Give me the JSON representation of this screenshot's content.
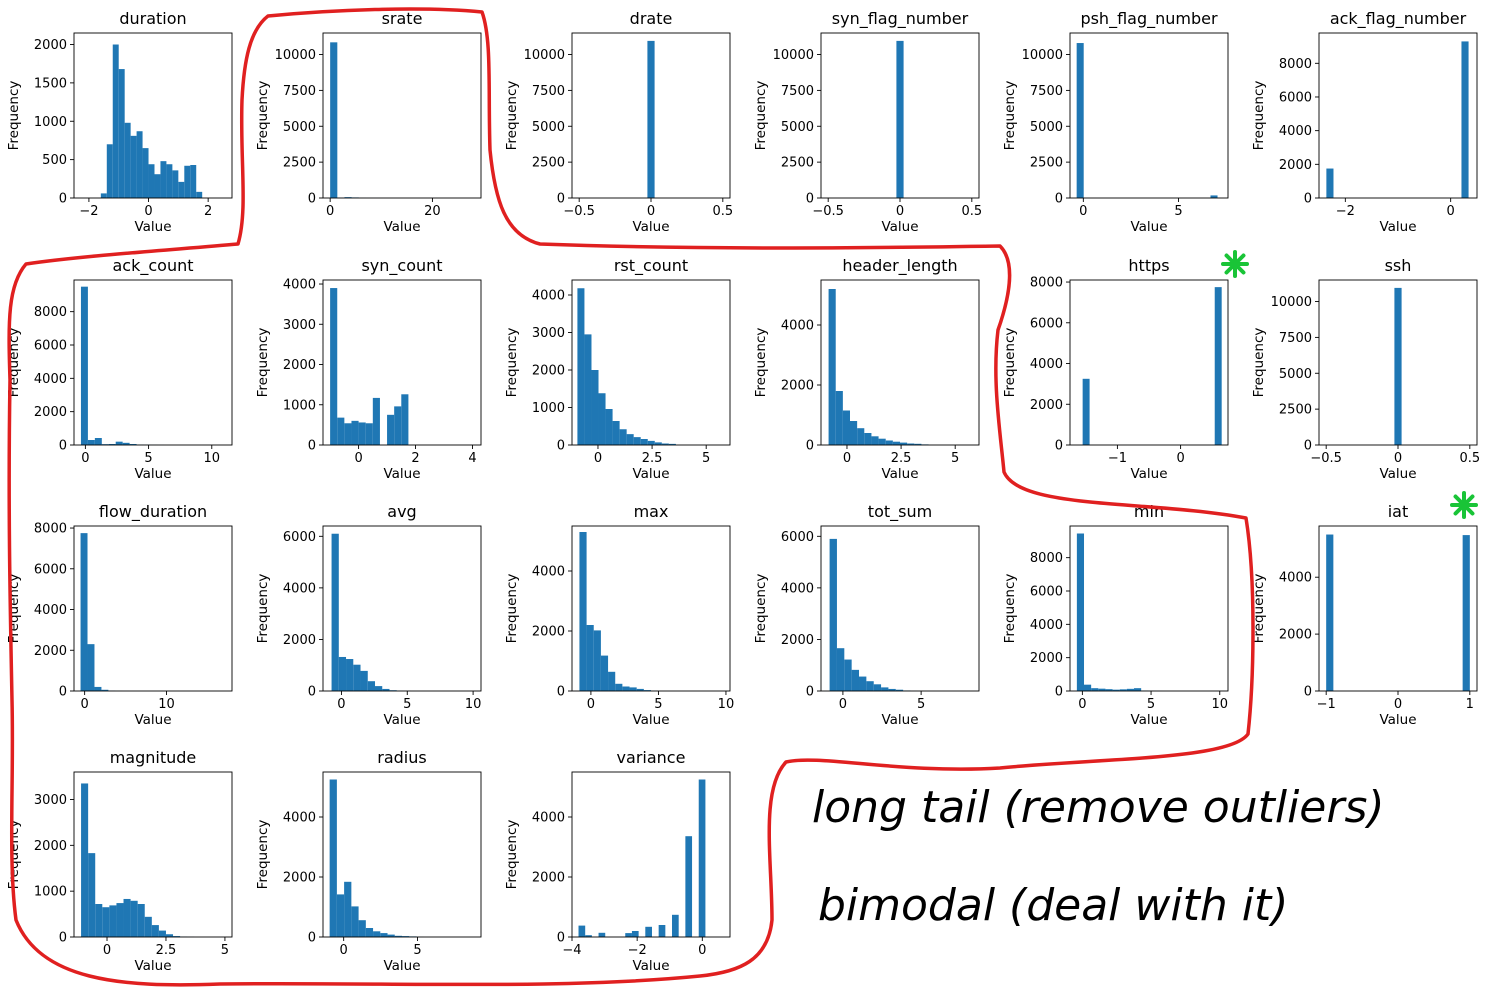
{
  "figure": {
    "bar_color": "#1f77b4",
    "ylabel": "Frequency",
    "xlabel": "Value",
    "annotations": [
      {
        "text": "long tail (remove outliers)",
        "color": "#e02020"
      },
      {
        "text": "bimodal (deal with it)",
        "color": "#19c437"
      }
    ]
  },
  "chart_data": [
    {
      "type": "bar",
      "title": "duration",
      "xlabel": "Value",
      "ylabel": "Frequency",
      "xlim": [
        -2.5,
        2.8
      ],
      "ylim": [
        0,
        2150
      ],
      "xticks": [
        -2,
        0,
        2
      ],
      "yticks": [
        0,
        500,
        1000,
        1500,
        2000
      ],
      "bins": {
        "start": -1.6,
        "width": 0.2,
        "values": [
          60,
          700,
          2000,
          1680,
          980,
          810,
          870,
          650,
          440,
          310,
          480,
          440,
          360,
          210,
          420,
          430,
          80
        ]
      }
    },
    {
      "type": "bar",
      "title": "srate",
      "xlabel": "Value",
      "ylabel": "Frequency",
      "xlim": [
        -1.4,
        29.5
      ],
      "ylim": [
        0,
        11500
      ],
      "xticks": [
        0,
        20
      ],
      "yticks": [
        0,
        2500,
        5000,
        7500,
        10000
      ],
      "bins": {
        "start": 0,
        "width": 1.4,
        "values": [
          10850,
          20,
          60,
          40,
          10,
          5,
          5,
          0,
          0,
          0,
          0,
          0,
          0,
          0,
          0,
          0,
          0,
          0,
          0,
          0
        ]
      }
    },
    {
      "type": "bar",
      "title": "drate",
      "xlabel": "Value",
      "ylabel": "Frequency",
      "xlim": [
        -0.55,
        0.55
      ],
      "ylim": [
        0,
        11500
      ],
      "xticks": [
        -0.5,
        0,
        0.5
      ],
      "yticks": [
        0,
        2500,
        5000,
        7500,
        10000
      ],
      "bins": {
        "start": -0.025,
        "width": 0.05,
        "values": [
          10950
        ]
      }
    },
    {
      "type": "bar",
      "title": "syn_flag_number",
      "xlabel": "Value",
      "ylabel": "Frequency",
      "xlim": [
        -0.55,
        0.55
      ],
      "ylim": [
        0,
        11500
      ],
      "xticks": [
        -0.5,
        0,
        0.5
      ],
      "yticks": [
        0,
        2500,
        5000,
        7500,
        10000
      ],
      "bins": {
        "start": -0.025,
        "width": 0.05,
        "values": [
          10950
        ]
      }
    },
    {
      "type": "bar",
      "title": "psh_flag_number",
      "xlabel": "Value",
      "ylabel": "Frequency",
      "xlim": [
        -0.7,
        7.6
      ],
      "ylim": [
        0,
        11500
      ],
      "xticks": [
        0,
        5
      ],
      "yticks": [
        0,
        2500,
        5000,
        7500,
        10000
      ],
      "bins": {
        "start": -0.35,
        "width": 0.37,
        "values": [
          10800,
          0,
          0,
          0,
          0,
          0,
          0,
          0,
          0,
          0,
          0,
          0,
          0,
          0,
          0,
          0,
          0,
          0,
          0,
          180
        ]
      }
    },
    {
      "type": "bar",
      "title": "ack_flag_number",
      "xlabel": "Value",
      "ylabel": "Frequency",
      "xlim": [
        -2.5,
        0.5
      ],
      "ylim": [
        0,
        9800
      ],
      "xticks": [
        -2,
        0
      ],
      "yticks": [
        0,
        2000,
        4000,
        6000,
        8000
      ],
      "bins": {
        "start": -2.36,
        "width": 0.135,
        "values": [
          1750,
          0,
          0,
          0,
          0,
          0,
          0,
          0,
          0,
          0,
          0,
          0,
          0,
          0,
          0,
          0,
          0,
          0,
          0,
          9300
        ]
      }
    },
    {
      "type": "bar",
      "title": "ack_count",
      "xlabel": "Value",
      "ylabel": "Frequency",
      "xlim": [
        -0.9,
        11.6
      ],
      "ylim": [
        0,
        9900
      ],
      "xticks": [
        0,
        5,
        10
      ],
      "yticks": [
        0,
        2000,
        4000,
        6000,
        8000
      ],
      "bins": {
        "start": -0.35,
        "width": 0.55,
        "values": [
          9500,
          300,
          420,
          50,
          60,
          200,
          130,
          60,
          30,
          20,
          10,
          5,
          0,
          0,
          0,
          0,
          0,
          0,
          0,
          0
        ]
      }
    },
    {
      "type": "bar",
      "title": "syn_count",
      "xlabel": "Value",
      "ylabel": "Frequency",
      "xlim": [
        -1.25,
        4.3
      ],
      "ylim": [
        0,
        4100
      ],
      "xticks": [
        0,
        2,
        4
      ],
      "yticks": [
        0,
        1000,
        2000,
        3000,
        4000
      ],
      "bins": {
        "start": -1.0,
        "width": 0.25,
        "values": [
          3900,
          680,
          540,
          600,
          560,
          540,
          1170,
          0,
          750,
          960,
          1260,
          0,
          0,
          0,
          0,
          0,
          0,
          0,
          0,
          0
        ]
      }
    },
    {
      "type": "bar",
      "title": "rst_count",
      "xlabel": "Value",
      "ylabel": "Frequency",
      "xlim": [
        -1.2,
        6.1
      ],
      "ylim": [
        0,
        4400
      ],
      "xticks": [
        0,
        2.5,
        5
      ],
      "yticks": [
        0,
        1000,
        2000,
        3000,
        4000
      ],
      "bins": {
        "start": -0.95,
        "width": 0.325,
        "values": [
          4180,
          2950,
          2000,
          1380,
          960,
          640,
          420,
          290,
          210,
          160,
          110,
          70,
          40,
          30,
          0,
          0,
          0,
          0,
          0,
          0
        ]
      }
    },
    {
      "type": "bar",
      "title": "header_length",
      "xlabel": "Value",
      "ylabel": "Frequency",
      "xlim": [
        -1.2,
        6.1
      ],
      "ylim": [
        0,
        5500
      ],
      "xticks": [
        0,
        2.5,
        5
      ],
      "yticks": [
        0,
        2000,
        4000
      ],
      "bins": {
        "start": -0.85,
        "width": 0.33,
        "values": [
          5200,
          1800,
          1150,
          800,
          560,
          400,
          290,
          210,
          150,
          110,
          80,
          50,
          40,
          20,
          0,
          0,
          0,
          0,
          0,
          0
        ]
      }
    },
    {
      "type": "bar",
      "title": "https",
      "xlabel": "Value",
      "ylabel": "Frequency",
      "xlim": [
        -1.75,
        0.75
      ],
      "ylim": [
        0,
        8100
      ],
      "xticks": [
        -1,
        0
      ],
      "yticks": [
        0,
        2000,
        4000,
        6000,
        8000
      ],
      "bins": {
        "start": -1.55,
        "width": 0.11,
        "values": [
          3250,
          0,
          0,
          0,
          0,
          0,
          0,
          0,
          0,
          0,
          0,
          0,
          0,
          0,
          0,
          0,
          0,
          0,
          0,
          7750
        ]
      }
    },
    {
      "type": "bar",
      "title": "ssh",
      "xlabel": "Value",
      "ylabel": "Frequency",
      "xlim": [
        -0.55,
        0.55
      ],
      "ylim": [
        0,
        11500
      ],
      "xticks": [
        -0.5,
        0,
        0.5
      ],
      "yticks": [
        0,
        2500,
        5000,
        7500,
        10000
      ],
      "bins": {
        "start": -0.025,
        "width": 0.05,
        "values": [
          10950
        ]
      }
    },
    {
      "type": "bar",
      "title": "flow_duration",
      "xlabel": "Value",
      "ylabel": "Frequency",
      "xlim": [
        -1.3,
        18
      ],
      "ylim": [
        0,
        8100
      ],
      "xticks": [
        0,
        10
      ],
      "yticks": [
        0,
        2000,
        4000,
        6000,
        8000
      ],
      "bins": {
        "start": -0.5,
        "width": 0.85,
        "values": [
          7750,
          2300,
          200,
          60,
          20,
          10,
          5,
          0,
          0,
          0,
          0,
          0,
          0,
          0,
          0,
          0,
          0,
          0,
          0,
          0
        ]
      }
    },
    {
      "type": "bar",
      "title": "avg",
      "xlabel": "Value",
      "ylabel": "Frequency",
      "xlim": [
        -1.4,
        10.6
      ],
      "ylim": [
        0,
        6400
      ],
      "xticks": [
        0,
        5,
        10
      ],
      "yticks": [
        0,
        2000,
        4000,
        6000
      ],
      "bins": {
        "start": -0.75,
        "width": 0.55,
        "values": [
          6100,
          1320,
          1240,
          1020,
          780,
          380,
          190,
          80,
          30,
          10,
          5,
          0,
          0,
          0,
          0,
          0,
          0,
          0,
          0,
          0
        ]
      }
    },
    {
      "type": "bar",
      "title": "max",
      "xlabel": "Value",
      "ylabel": "Frequency",
      "xlim": [
        -1.4,
        10.3
      ],
      "ylim": [
        0,
        5500
      ],
      "xticks": [
        0,
        5,
        10
      ],
      "yticks": [
        0,
        2000,
        4000
      ],
      "bins": {
        "start": -0.85,
        "width": 0.53,
        "values": [
          5300,
          2200,
          2020,
          1180,
          640,
          240,
          150,
          120,
          70,
          30,
          10,
          0,
          0,
          0,
          0,
          0,
          0,
          0,
          0,
          0
        ]
      }
    },
    {
      "type": "bar",
      "title": "tot_sum",
      "xlabel": "Value",
      "ylabel": "Frequency",
      "xlim": [
        -1.4,
        8.7
      ],
      "ylim": [
        0,
        6400
      ],
      "xticks": [
        0,
        5
      ],
      "yticks": [
        0,
        2000,
        4000,
        6000
      ],
      "bins": {
        "start": -0.85,
        "width": 0.47,
        "values": [
          5900,
          1660,
          1220,
          820,
          560,
          380,
          260,
          140,
          80,
          50,
          20,
          5,
          0,
          0,
          0,
          0,
          0,
          0,
          0,
          0
        ]
      }
    },
    {
      "type": "bar",
      "title": "min",
      "xlabel": "Value",
      "ylabel": "Frequency",
      "xlim": [
        -0.9,
        10.6
      ],
      "ylim": [
        0,
        9900
      ],
      "xticks": [
        0,
        5,
        10
      ],
      "yticks": [
        0,
        2000,
        4000,
        6000,
        8000
      ],
      "bins": {
        "start": -0.4,
        "width": 0.52,
        "values": [
          9450,
          380,
          170,
          140,
          110,
          80,
          100,
          130,
          170,
          30,
          10,
          5,
          0,
          0,
          0,
          0,
          0,
          0,
          0,
          0
        ]
      }
    },
    {
      "type": "bar",
      "title": "iat",
      "xlabel": "Value",
      "ylabel": "Frequency",
      "xlim": [
        -1.1,
        1.1
      ],
      "ylim": [
        0,
        5800
      ],
      "xticks": [
        -1,
        0,
        1
      ],
      "yticks": [
        0,
        2000,
        4000
      ],
      "bins": {
        "start": -1.0,
        "width": 0.1,
        "values": [
          5500,
          0,
          0,
          0,
          0,
          0,
          0,
          0,
          0,
          0,
          0,
          0,
          0,
          0,
          0,
          0,
          0,
          0,
          0,
          5480
        ]
      }
    },
    {
      "type": "bar",
      "title": "magnitude",
      "xlabel": "Value",
      "ylabel": "Frequency",
      "xlim": [
        -1.4,
        5.3
      ],
      "ylim": [
        0,
        3600
      ],
      "xticks": [
        0,
        2.5,
        5
      ],
      "yticks": [
        0,
        1000,
        2000,
        3000
      ],
      "bins": {
        "start": -1.1,
        "width": 0.3,
        "values": [
          3350,
          1830,
          720,
          650,
          690,
          740,
          830,
          790,
          720,
          440,
          260,
          140,
          60,
          20,
          10,
          5,
          0,
          0,
          0,
          0
        ]
      }
    },
    {
      "type": "bar",
      "title": "radius",
      "xlabel": "Value",
      "ylabel": "Frequency",
      "xlim": [
        -1.4,
        9.3
      ],
      "ylim": [
        0,
        5500
      ],
      "xticks": [
        0,
        5
      ],
      "yticks": [
        0,
        2000,
        4000
      ],
      "bins": {
        "start": -0.95,
        "width": 0.49,
        "values": [
          5250,
          1420,
          1840,
          1020,
          560,
          300,
          190,
          130,
          80,
          40,
          30,
          20,
          5,
          0,
          0,
          0,
          0,
          0,
          0,
          0
        ]
      }
    },
    {
      "type": "bar",
      "title": "variance",
      "xlabel": "Value",
      "ylabel": "Frequency",
      "xlim": [
        -4.0,
        0.85
      ],
      "ylim": [
        0,
        5500
      ],
      "xticks": [
        -4,
        -2,
        0
      ],
      "yticks": [
        0,
        2000,
        4000
      ],
      "bins": {
        "start": -3.8,
        "width": 0.205,
        "values": [
          380,
          60,
          0,
          140,
          0,
          0,
          0,
          130,
          200,
          0,
          340,
          0,
          400,
          0,
          740,
          0,
          3360,
          0,
          5250
        ]
      }
    }
  ]
}
